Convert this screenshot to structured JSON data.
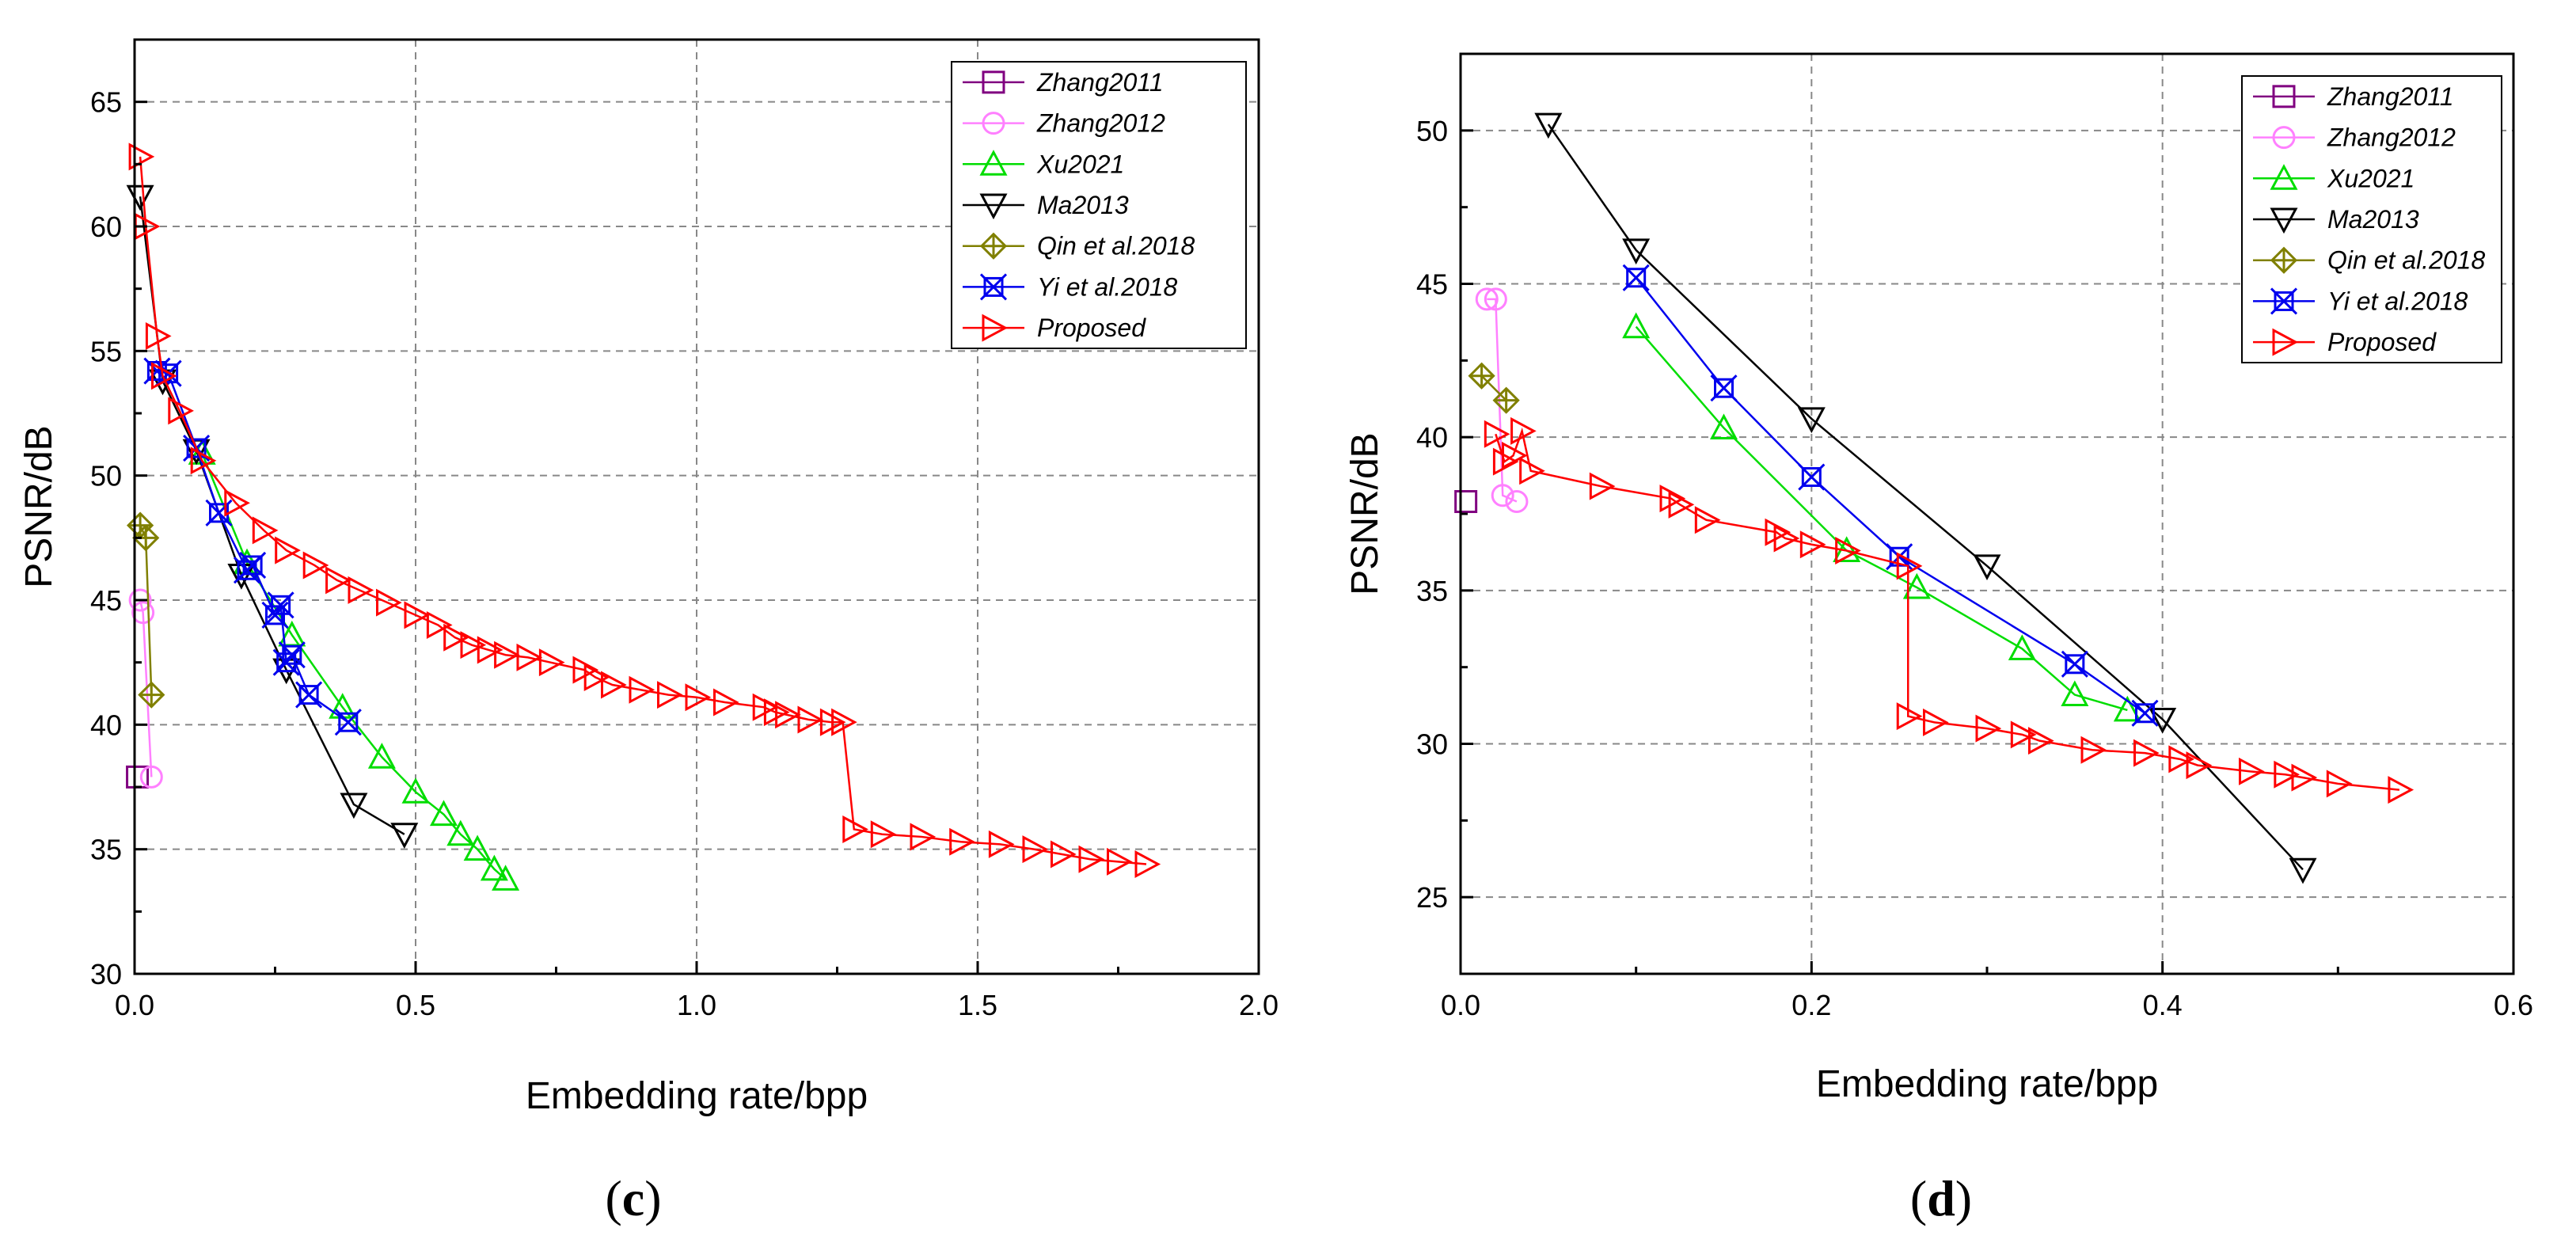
{
  "chart_data": [
    {
      "type": "line",
      "panel_label": "(c)",
      "panel_letter": "c",
      "xlabel": "Embedding rate/bpp",
      "ylabel": "PSNR/dB",
      "xlim": [
        0,
        2.0
      ],
      "ylim": [
        30,
        67.5
      ],
      "xticks": [
        0.0,
        0.5,
        1.0,
        1.5,
        2.0
      ],
      "xtick_labels": [
        "0.0",
        "0.5",
        "1.0",
        "1.5",
        "2.0"
      ],
      "yticks": [
        30,
        35,
        40,
        45,
        50,
        55,
        60,
        65
      ],
      "ytick_labels": [
        "30",
        "35",
        "40",
        "45",
        "50",
        "55",
        "60",
        "65"
      ],
      "grid": true,
      "legend_position": "top-right",
      "series": [
        {
          "name": "Zhang2011",
          "color": "#800080",
          "marker": "square",
          "x": [
            0.005
          ],
          "y": [
            37.9
          ]
        },
        {
          "name": "Zhang2012",
          "color": "#ff80ff",
          "marker": "circle",
          "x": [
            0.01,
            0.015,
            0.03
          ],
          "y": [
            45.0,
            44.5,
            37.9
          ]
        },
        {
          "name": "Xu2021",
          "color": "#00dd00",
          "marker": "triangle-up",
          "x": [
            0.12,
            0.2,
            0.28,
            0.37,
            0.44,
            0.5,
            0.55,
            0.58,
            0.61,
            0.64,
            0.66
          ],
          "y": [
            50.9,
            46.5,
            43.6,
            40.7,
            38.7,
            37.3,
            36.4,
            35.6,
            35.0,
            34.2,
            33.8
          ]
        },
        {
          "name": "Ma2013",
          "color": "#000000",
          "marker": "triangle-down",
          "x": [
            0.01,
            0.05,
            0.11,
            0.19,
            0.27,
            0.39,
            0.48
          ],
          "y": [
            61.2,
            53.8,
            51.0,
            46.0,
            42.2,
            36.8,
            35.6
          ]
        },
        {
          "name": "Qin et al.2018",
          "color": "#808000",
          "marker": "diamond-plus",
          "x": [
            0.01,
            0.02,
            0.03
          ],
          "y": [
            48.0,
            47.5,
            41.2
          ]
        },
        {
          "name": "Yi et al.2018",
          "color": "#0000ee",
          "marker": "x-square",
          "x": [
            0.04,
            0.06,
            0.11,
            0.15,
            0.2,
            0.21,
            0.25,
            0.26,
            0.27,
            0.28,
            0.31,
            0.38
          ],
          "y": [
            54.2,
            54.1,
            51.1,
            48.5,
            46.2,
            46.4,
            44.4,
            44.8,
            42.5,
            42.8,
            41.2,
            40.1
          ]
        },
        {
          "name": "Proposed",
          "color": "#ff0000",
          "marker": "triangle-right",
          "x": [
            0.01,
            0.02,
            0.04,
            0.05,
            0.08,
            0.12,
            0.18,
            0.23,
            0.27,
            0.32,
            0.36,
            0.4,
            0.45,
            0.5,
            0.54,
            0.57,
            0.6,
            0.63,
            0.66,
            0.7,
            0.74,
            0.8,
            0.82,
            0.85,
            0.9,
            0.95,
            1.0,
            1.05,
            1.12,
            1.14,
            1.16,
            1.2,
            1.24,
            1.26,
            1.28,
            1.33,
            1.4,
            1.47,
            1.54,
            1.6,
            1.65,
            1.7,
            1.75,
            1.8
          ],
          "y": [
            62.8,
            60.0,
            55.6,
            54.0,
            52.6,
            50.6,
            48.9,
            47.8,
            47.0,
            46.4,
            45.8,
            45.4,
            44.9,
            44.4,
            44.0,
            43.5,
            43.2,
            43.0,
            42.8,
            42.7,
            42.5,
            42.2,
            41.9,
            41.6,
            41.4,
            41.2,
            41.1,
            40.9,
            40.7,
            40.5,
            40.4,
            40.2,
            40.1,
            40.1,
            35.8,
            35.6,
            35.5,
            35.3,
            35.2,
            35.0,
            34.8,
            34.6,
            34.5,
            34.4
          ]
        }
      ]
    },
    {
      "type": "line",
      "panel_label": "(d)",
      "panel_letter": "d",
      "xlabel": "Embedding rate/bpp",
      "ylabel": "PSNR/dB",
      "xlim": [
        0,
        0.6
      ],
      "ylim": [
        22.5,
        52.5
      ],
      "xticks": [
        0.0,
        0.2,
        0.4,
        0.6
      ],
      "xtick_labels": [
        "0.0",
        "0.2",
        "0.4",
        "0.6"
      ],
      "yticks": [
        25,
        30,
        35,
        40,
        45,
        50
      ],
      "ytick_labels": [
        "25",
        "30",
        "35",
        "40",
        "45",
        "50"
      ],
      "grid": true,
      "legend_position": "top-right",
      "series": [
        {
          "name": "Zhang2011",
          "color": "#800080",
          "marker": "square",
          "x": [
            0.003
          ],
          "y": [
            37.9
          ]
        },
        {
          "name": "Zhang2012",
          "color": "#ff80ff",
          "marker": "circle",
          "x": [
            0.015,
            0.02,
            0.024,
            0.032
          ],
          "y": [
            44.5,
            44.5,
            38.1,
            37.9
          ]
        },
        {
          "name": "Xu2021",
          "color": "#00dd00",
          "marker": "triangle-up",
          "x": [
            0.1,
            0.15,
            0.22,
            0.26,
            0.32,
            0.35,
            0.38
          ],
          "y": [
            43.6,
            40.3,
            36.3,
            35.1,
            33.1,
            31.6,
            31.1
          ]
        },
        {
          "name": "Ma2013",
          "color": "#000000",
          "marker": "triangle-down",
          "x": [
            0.05,
            0.1,
            0.2,
            0.3,
            0.4,
            0.48
          ],
          "y": [
            50.2,
            46.1,
            40.6,
            35.8,
            30.8,
            25.9
          ]
        },
        {
          "name": "Qin et al.2018",
          "color": "#808000",
          "marker": "diamond-plus",
          "x": [
            0.012,
            0.026
          ],
          "y": [
            42.0,
            41.2
          ]
        },
        {
          "name": "Yi et al.2018",
          "color": "#0000ee",
          "marker": "x-square",
          "x": [
            0.1,
            0.15,
            0.2,
            0.25,
            0.35,
            0.39
          ],
          "y": [
            45.2,
            41.6,
            38.7,
            36.1,
            32.6,
            31.0
          ]
        },
        {
          "name": "Proposed",
          "color": "#ff0000",
          "marker": "triangle-right",
          "x": [
            0.02,
            0.025,
            0.03,
            0.035,
            0.04,
            0.08,
            0.12,
            0.125,
            0.14,
            0.18,
            0.185,
            0.2,
            0.22,
            0.255,
            0.255,
            0.27,
            0.3,
            0.32,
            0.33,
            0.36,
            0.39,
            0.41,
            0.42,
            0.45,
            0.47,
            0.48,
            0.5,
            0.535
          ],
          "y": [
            40.1,
            39.2,
            39.4,
            40.2,
            38.9,
            38.4,
            38.0,
            37.8,
            37.3,
            36.9,
            36.7,
            36.5,
            36.3,
            35.8,
            30.9,
            30.7,
            30.5,
            30.3,
            30.1,
            29.8,
            29.7,
            29.5,
            29.3,
            29.1,
            29.0,
            28.9,
            28.7,
            28.5
          ]
        }
      ]
    }
  ]
}
